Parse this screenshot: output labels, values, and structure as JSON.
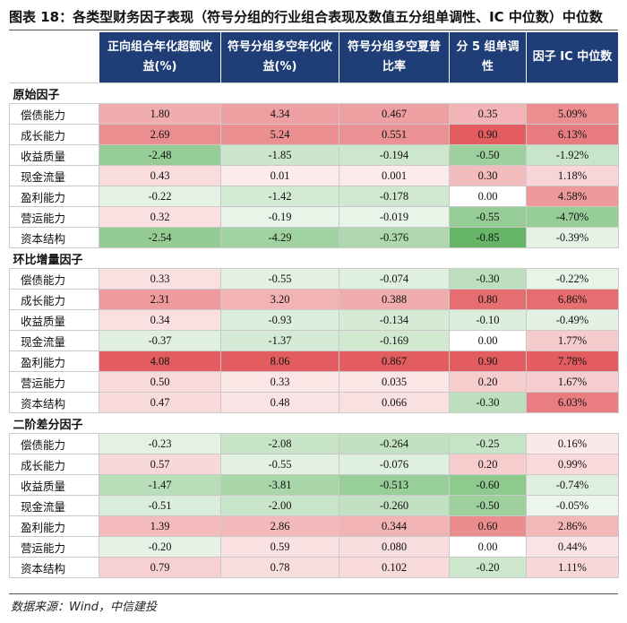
{
  "title": "图表 18：各类型财务因子表现（符号分组的行业组合表现及数值五分组单调性、IC 中位数）中位数",
  "columns": [
    "",
    "正向组合年化超额收益(%)",
    "符号分组多空年化收益(%)",
    "符号分组多空夏普比率",
    "分 5 组单调性",
    "因子 IC 中位数"
  ],
  "groups": [
    {
      "name": "原始因子",
      "rows": [
        {
          "label": "偿债能力",
          "values": [
            "1.80",
            "4.34",
            "0.467",
            "0.35",
            "5.09%"
          ]
        },
        {
          "label": "成长能力",
          "values": [
            "2.69",
            "5.24",
            "0.551",
            "0.90",
            "6.13%"
          ]
        },
        {
          "label": "收益质量",
          "values": [
            "-2.48",
            "-1.85",
            "-0.194",
            "-0.50",
            "-1.92%"
          ]
        },
        {
          "label": "现金流量",
          "values": [
            "0.43",
            "0.01",
            "0.001",
            "0.30",
            "1.18%"
          ]
        },
        {
          "label": "盈利能力",
          "values": [
            "-0.22",
            "-1.42",
            "-0.178",
            "0.00",
            "4.58%"
          ]
        },
        {
          "label": "营运能力",
          "values": [
            "0.32",
            "-0.19",
            "-0.019",
            "-0.55",
            "-4.70%"
          ]
        },
        {
          "label": "资本结构",
          "values": [
            "-2.54",
            "-4.29",
            "-0.376",
            "-0.85",
            "-0.39%"
          ]
        }
      ]
    },
    {
      "name": "环比增量因子",
      "rows": [
        {
          "label": "偿债能力",
          "values": [
            "0.33",
            "-0.55",
            "-0.074",
            "-0.30",
            "-0.22%"
          ]
        },
        {
          "label": "成长能力",
          "values": [
            "2.31",
            "3.20",
            "0.388",
            "0.80",
            "6.86%"
          ]
        },
        {
          "label": "收益质量",
          "values": [
            "0.34",
            "-0.93",
            "-0.134",
            "-0.10",
            "-0.49%"
          ]
        },
        {
          "label": "现金流量",
          "values": [
            "-0.37",
            "-1.37",
            "-0.169",
            "0.00",
            "1.77%"
          ]
        },
        {
          "label": "盈利能力",
          "values": [
            "4.08",
            "8.06",
            "0.867",
            "0.90",
            "7.78%"
          ]
        },
        {
          "label": "营运能力",
          "values": [
            "0.50",
            "0.33",
            "0.035",
            "0.20",
            "1.67%"
          ]
        },
        {
          "label": "资本结构",
          "values": [
            "0.47",
            "0.48",
            "0.066",
            "-0.30",
            "6.03%"
          ]
        }
      ]
    },
    {
      "name": "二阶差分因子",
      "rows": [
        {
          "label": "偿债能力",
          "values": [
            "-0.23",
            "-2.08",
            "-0.264",
            "-0.25",
            "0.16%"
          ]
        },
        {
          "label": "成长能力",
          "values": [
            "0.57",
            "-0.55",
            "-0.076",
            "0.20",
            "0.99%"
          ]
        },
        {
          "label": "收益质量",
          "values": [
            "-1.47",
            "-3.81",
            "-0.513",
            "-0.60",
            "-0.74%"
          ]
        },
        {
          "label": "现金流量",
          "values": [
            "-0.51",
            "-2.00",
            "-0.260",
            "-0.50",
            "-0.05%"
          ]
        },
        {
          "label": "盈利能力",
          "values": [
            "1.39",
            "2.86",
            "0.344",
            "0.60",
            "2.86%"
          ]
        },
        {
          "label": "营运能力",
          "values": [
            "-0.20",
            "0.59",
            "0.080",
            "0.00",
            "0.44%"
          ]
        },
        {
          "label": "资本结构",
          "values": [
            "0.79",
            "0.78",
            "0.102",
            "-0.20",
            "1.11%"
          ]
        }
      ]
    }
  ],
  "source": "数据来源：Wind，中信建投",
  "colors": {
    "header_bg": "#1f3e77",
    "positive": "#e35d60",
    "negative": "#5fb25f"
  }
}
